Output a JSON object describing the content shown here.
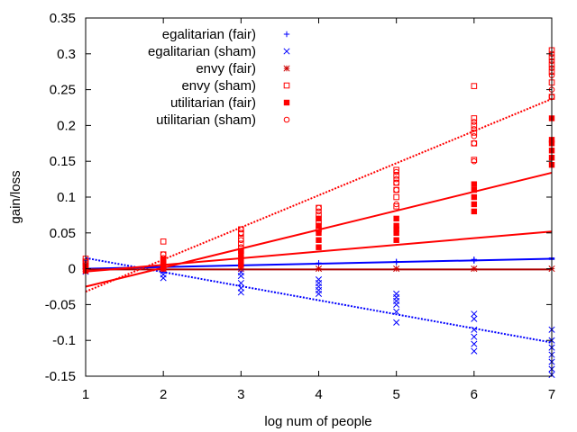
{
  "chart_data": {
    "type": "scatter",
    "xlabel": "log num of people",
    "ylabel": "gain/loss",
    "xlim": [
      1,
      7
    ],
    "ylim": [
      -0.15,
      0.35
    ],
    "grid": false,
    "legend_position": "top-left",
    "x_ticks": [
      "1",
      "2",
      "3",
      "4",
      "5",
      "6",
      "7"
    ],
    "y_ticks": [
      "-0.15",
      "-0.1",
      "-0.05",
      "0",
      "0.05",
      "0.1",
      "0.15",
      "0.2",
      "0.25",
      "0.3",
      "0.35"
    ],
    "series": [
      {
        "name": "egalitarian (fair)",
        "marker": "plus",
        "color": "#0000ff",
        "points": [
          [
            1,
            0.0
          ],
          [
            1,
            0.002
          ],
          [
            2,
            0.003
          ],
          [
            2,
            0.004
          ],
          [
            3,
            0.005
          ],
          [
            3,
            0.006
          ],
          [
            4,
            0.007
          ],
          [
            4,
            0.008
          ],
          [
            5,
            0.009
          ],
          [
            5,
            0.01
          ],
          [
            6,
            0.011
          ],
          [
            6,
            0.012
          ],
          [
            6,
            0.013
          ],
          [
            7,
            0.013
          ],
          [
            7,
            0.014
          ],
          [
            7,
            0.015
          ]
        ]
      },
      {
        "name": "egalitarian (sham)",
        "marker": "x",
        "color": "#0000ff",
        "points": [
          [
            1,
            -0.004
          ],
          [
            1,
            0.01
          ],
          [
            1,
            0.004
          ],
          [
            2,
            -0.013
          ],
          [
            2,
            -0.008
          ],
          [
            2,
            -0.003
          ],
          [
            3,
            -0.033
          ],
          [
            3,
            -0.027
          ],
          [
            3,
            -0.02
          ],
          [
            3,
            -0.01
          ],
          [
            3,
            -0.005
          ],
          [
            4,
            -0.035
          ],
          [
            4,
            -0.03
          ],
          [
            4,
            -0.025
          ],
          [
            4,
            -0.02
          ],
          [
            4,
            -0.015
          ],
          [
            5,
            -0.075
          ],
          [
            5,
            -0.06
          ],
          [
            5,
            -0.05
          ],
          [
            5,
            -0.045
          ],
          [
            5,
            -0.04
          ],
          [
            5,
            -0.035
          ],
          [
            6,
            -0.115
          ],
          [
            6,
            -0.105
          ],
          [
            6,
            -0.095
          ],
          [
            6,
            -0.085
          ],
          [
            6,
            -0.07
          ],
          [
            6,
            -0.063
          ],
          [
            7,
            -0.148
          ],
          [
            7,
            -0.14
          ],
          [
            7,
            -0.13
          ],
          [
            7,
            -0.12
          ],
          [
            7,
            -0.11
          ],
          [
            7,
            -0.1
          ],
          [
            7,
            -0.085
          ]
        ]
      },
      {
        "name": "envy (fair)",
        "marker": "star",
        "color": "#cc0000",
        "points": [
          [
            1,
            0.0
          ],
          [
            2,
            0.0
          ],
          [
            3,
            0.0
          ],
          [
            4,
            0.0
          ],
          [
            5,
            0.0
          ],
          [
            6,
            0.0
          ],
          [
            7,
            0.0
          ]
        ]
      },
      {
        "name": "envy (sham)",
        "marker": "square-open",
        "color": "#ff0000",
        "points": [
          [
            1,
            0.005
          ],
          [
            1,
            0.01
          ],
          [
            1,
            0.014
          ],
          [
            2,
            0.038
          ],
          [
            2,
            0.02
          ],
          [
            2,
            0.012
          ],
          [
            2,
            0.005
          ],
          [
            3,
            0.025
          ],
          [
            3,
            0.035
          ],
          [
            3,
            0.042
          ],
          [
            3,
            0.05
          ],
          [
            3,
            0.055
          ],
          [
            4,
            0.055
          ],
          [
            4,
            0.065
          ],
          [
            4,
            0.075
          ],
          [
            4,
            0.085
          ],
          [
            5,
            0.087
          ],
          [
            5,
            0.1
          ],
          [
            5,
            0.11
          ],
          [
            5,
            0.12
          ],
          [
            5,
            0.13
          ],
          [
            5,
            0.138
          ],
          [
            6,
            0.152
          ],
          [
            6,
            0.175
          ],
          [
            6,
            0.19
          ],
          [
            6,
            0.2
          ],
          [
            6,
            0.21
          ],
          [
            6,
            0.255
          ],
          [
            7,
            0.24
          ],
          [
            7,
            0.26
          ],
          [
            7,
            0.275
          ],
          [
            7,
            0.285
          ],
          [
            7,
            0.295
          ],
          [
            7,
            0.305
          ]
        ]
      },
      {
        "name": "utilitarian (fair)",
        "marker": "square-filled",
        "color": "#ff0000",
        "points": [
          [
            1,
            -0.003
          ],
          [
            1,
            0.002
          ],
          [
            2,
            0.0
          ],
          [
            2,
            0.005
          ],
          [
            2,
            0.008
          ],
          [
            2,
            0.012
          ],
          [
            3,
            0.005
          ],
          [
            3,
            0.01
          ],
          [
            3,
            0.015
          ],
          [
            3,
            0.02
          ],
          [
            3,
            0.025
          ],
          [
            4,
            0.03
          ],
          [
            4,
            0.04
          ],
          [
            4,
            0.05
          ],
          [
            4,
            0.06
          ],
          [
            4,
            0.07
          ],
          [
            5,
            0.04
          ],
          [
            5,
            0.05
          ],
          [
            5,
            0.055
          ],
          [
            5,
            0.06
          ],
          [
            5,
            0.07
          ],
          [
            6,
            0.08
          ],
          [
            6,
            0.09
          ],
          [
            6,
            0.1
          ],
          [
            6,
            0.11
          ],
          [
            6,
            0.118
          ],
          [
            7,
            0.145
          ],
          [
            7,
            0.155
          ],
          [
            7,
            0.165
          ],
          [
            7,
            0.175
          ],
          [
            7,
            0.18
          ],
          [
            7,
            0.21
          ]
        ]
      },
      {
        "name": "utilitarian (sham)",
        "marker": "circle-open",
        "color": "#ff0000",
        "points": [
          [
            1,
            0.005
          ],
          [
            1,
            0.01
          ],
          [
            2,
            0.02
          ],
          [
            2,
            0.015
          ],
          [
            2,
            0.01
          ],
          [
            3,
            0.03
          ],
          [
            3,
            0.04
          ],
          [
            3,
            0.05
          ],
          [
            3,
            0.055
          ],
          [
            4,
            0.06
          ],
          [
            4,
            0.07
          ],
          [
            4,
            0.08
          ],
          [
            4,
            0.085
          ],
          [
            5,
            0.09
          ],
          [
            5,
            0.11
          ],
          [
            5,
            0.12
          ],
          [
            5,
            0.125
          ],
          [
            5,
            0.135
          ],
          [
            6,
            0.15
          ],
          [
            6,
            0.175
          ],
          [
            6,
            0.185
          ],
          [
            6,
            0.195
          ],
          [
            6,
            0.205
          ],
          [
            7,
            0.24
          ],
          [
            7,
            0.25
          ],
          [
            7,
            0.27
          ],
          [
            7,
            0.28
          ],
          [
            7,
            0.29
          ],
          [
            7,
            0.3
          ]
        ]
      }
    ],
    "fit_lines": [
      {
        "color": "#0000ff",
        "style": "solid",
        "from": [
          1,
          0.0
        ],
        "to": [
          7,
          0.014
        ]
      },
      {
        "color": "#0000ff",
        "style": "dotted",
        "from": [
          1,
          0.015
        ],
        "to": [
          7,
          -0.103
        ]
      },
      {
        "color": "#aa0000",
        "style": "solid",
        "from": [
          1,
          -0.001
        ],
        "to": [
          7,
          -0.001
        ]
      },
      {
        "color": "#ff0000",
        "style": "solid",
        "from": [
          1,
          -0.004
        ],
        "to": [
          7,
          0.052
        ]
      },
      {
        "color": "#ff0000",
        "style": "solid",
        "from": [
          1,
          -0.025
        ],
        "to": [
          7,
          0.134
        ]
      },
      {
        "color": "#ff0000",
        "style": "dotted",
        "from": [
          1,
          -0.032
        ],
        "to": [
          7,
          0.237
        ]
      }
    ]
  }
}
